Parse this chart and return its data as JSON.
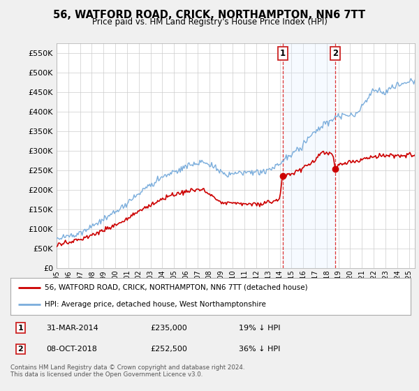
{
  "title": "56, WATFORD ROAD, CRICK, NORTHAMPTON, NN6 7TT",
  "subtitle": "Price paid vs. HM Land Registry's House Price Index (HPI)",
  "ylabel_ticks": [
    "£0",
    "£50K",
    "£100K",
    "£150K",
    "£200K",
    "£250K",
    "£300K",
    "£350K",
    "£400K",
    "£450K",
    "£500K",
    "£550K"
  ],
  "ytick_values": [
    0,
    50000,
    100000,
    150000,
    200000,
    250000,
    300000,
    350000,
    400000,
    450000,
    500000,
    550000
  ],
  "ylim": [
    0,
    575000
  ],
  "background_color": "#f0f0f0",
  "plot_bg_color": "#ffffff",
  "hpi_color": "#7aaddc",
  "price_color": "#cc0000",
  "shade_color": "#ddeeff",
  "marker1_x": 2014.25,
  "marker1_y": 235000,
  "marker2_x": 2018.75,
  "marker2_y": 252500,
  "marker1_date": "31-MAR-2014",
  "marker1_price": "£235,000",
  "marker1_hpi": "19% ↓ HPI",
  "marker2_date": "08-OCT-2018",
  "marker2_price": "£252,500",
  "marker2_hpi": "36% ↓ HPI",
  "legend_label1": "56, WATFORD ROAD, CRICK, NORTHAMPTON, NN6 7TT (detached house)",
  "legend_label2": "HPI: Average price, detached house, West Northamptonshire",
  "footnote": "Contains HM Land Registry data © Crown copyright and database right 2024.\nThis data is licensed under the Open Government Licence v3.0.",
  "xmin": 1995.0,
  "xmax": 2025.5
}
